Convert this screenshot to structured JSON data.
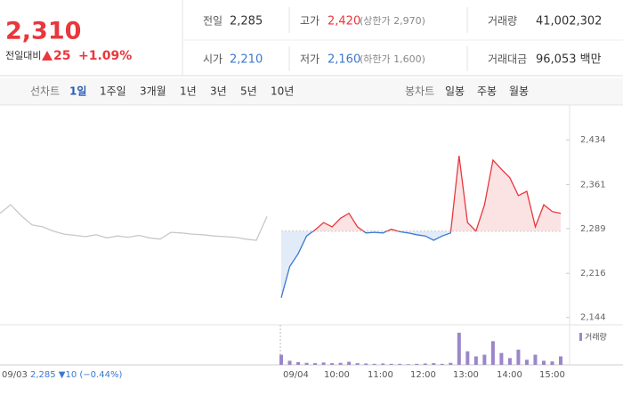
{
  "header": {
    "price": "2,310",
    "change_label": "전일대비",
    "change": "25",
    "change_pct": "+1.09%",
    "stats": [
      [
        "전일",
        "2,285",
        "고가",
        "2,420",
        "(상한가 2,970)",
        "거래량",
        "41,002,302"
      ],
      [
        "시가",
        "2,210",
        "저가",
        "2,160",
        "(하한가 1,600)",
        "거래대금",
        "96,053 백만"
      ]
    ]
  },
  "toolbar": {
    "line_label": "선차트",
    "line_periods": [
      "1일",
      "1주일",
      "3개월",
      "1년",
      "3년",
      "5년",
      "10년"
    ],
    "candle_label": "봉차트",
    "candle_periods": [
      "일봉",
      "주봉",
      "월봉"
    ]
  },
  "chart_data": {
    "type": "line",
    "baseline": 2285,
    "ylim": [
      2132,
      2488
    ],
    "yticks": [
      {
        "value": 2144,
        "label": "2,144"
      },
      {
        "value": 2216,
        "label": "2,216"
      },
      {
        "value": 2289,
        "label": "2,289"
      },
      {
        "value": 2361,
        "label": "2,361"
      },
      {
        "value": 2434,
        "label": "2,434"
      }
    ],
    "x_labels": [
      "09/03",
      "09/04",
      "10:00",
      "11:00",
      "12:00",
      "13:00",
      "14:00",
      "15:00"
    ],
    "prev_day_note": "2,285 ▼10 (−0.44%)",
    "series": [
      {
        "name": "09/03",
        "color": "#c8c8c8",
        "values": [
          2314,
          2328,
          2310,
          2295,
          2292,
          2285,
          2280,
          2278,
          2276,
          2279,
          2274,
          2277,
          2275,
          2278,
          2274,
          2272,
          2283,
          2282,
          2280,
          2279,
          2277,
          2276,
          2275,
          2272,
          2270,
          2309
        ]
      },
      {
        "name": "09/04",
        "up_color": "#e8373d",
        "down_color": "#3a78d0",
        "values": [
          2176,
          2227,
          2248,
          2277,
          2287,
          2299,
          2292,
          2306,
          2314,
          2292,
          2282,
          2283,
          2282,
          2288,
          2284,
          2282,
          2279,
          2277,
          2270,
          2277,
          2282,
          2408,
          2299,
          2285,
          2328,
          2401,
          2386,
          2372,
          2343,
          2350,
          2292,
          2328,
          2317,
          2314
        ]
      }
    ],
    "volume": {
      "name": "거래량",
      "color": "#9b86c9",
      "ylim": [
        0,
        100
      ],
      "values": [
        30,
        12,
        8,
        6,
        5,
        7,
        5,
        6,
        9,
        5,
        4,
        3,
        4,
        3,
        3,
        2,
        3,
        4,
        5,
        3,
        6,
        95,
        40,
        25,
        30,
        70,
        35,
        20,
        45,
        15,
        30,
        12,
        10,
        25
      ]
    }
  }
}
